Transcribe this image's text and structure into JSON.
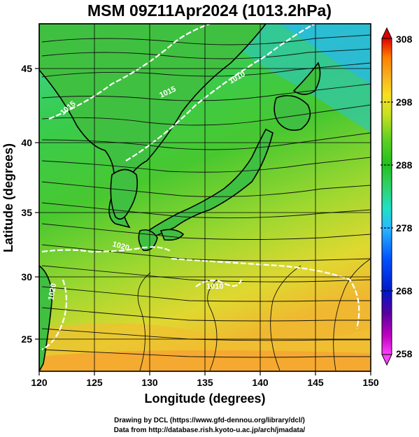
{
  "title": "MSM 09Z11Apr2024 (1013.2hPa)",
  "map": {
    "xlabel": "Longitude (degrees)",
    "ylabel": "Latitude  (degrees)",
    "x_ticks": [
      "120",
      "125",
      "130",
      "135",
      "140",
      "145",
      "150"
    ],
    "y_ticks": [
      "25",
      "30",
      "35",
      "40",
      "45"
    ],
    "xlim": [
      120,
      150
    ],
    "ylim": [
      22.4,
      47.6
    ],
    "contour_labels": [
      "1020",
      "1020",
      "1015",
      "1015",
      "1010",
      "1010"
    ]
  },
  "colorbar": {
    "labels": [
      "308",
      "298",
      "288",
      "278",
      "268",
      "258"
    ],
    "range": [
      258,
      308
    ],
    "colors": [
      "#ff40ff",
      "#c000c0",
      "#5a00a0",
      "#0018c8",
      "#0050ff",
      "#2ab8ff",
      "#20e0c8",
      "#30d060",
      "#20c020",
      "#60d020",
      "#c8e020",
      "#f8e020",
      "#f8b020",
      "#ff8000",
      "#ff3000",
      "#e00000"
    ]
  },
  "credits": {
    "line1": "Drawing by DCL (https://www.gfd-dennou.org/library/dcl/)",
    "line2": "Data from http://database.rish.kyoto-u.ac.jp/arch/jmadata/"
  }
}
